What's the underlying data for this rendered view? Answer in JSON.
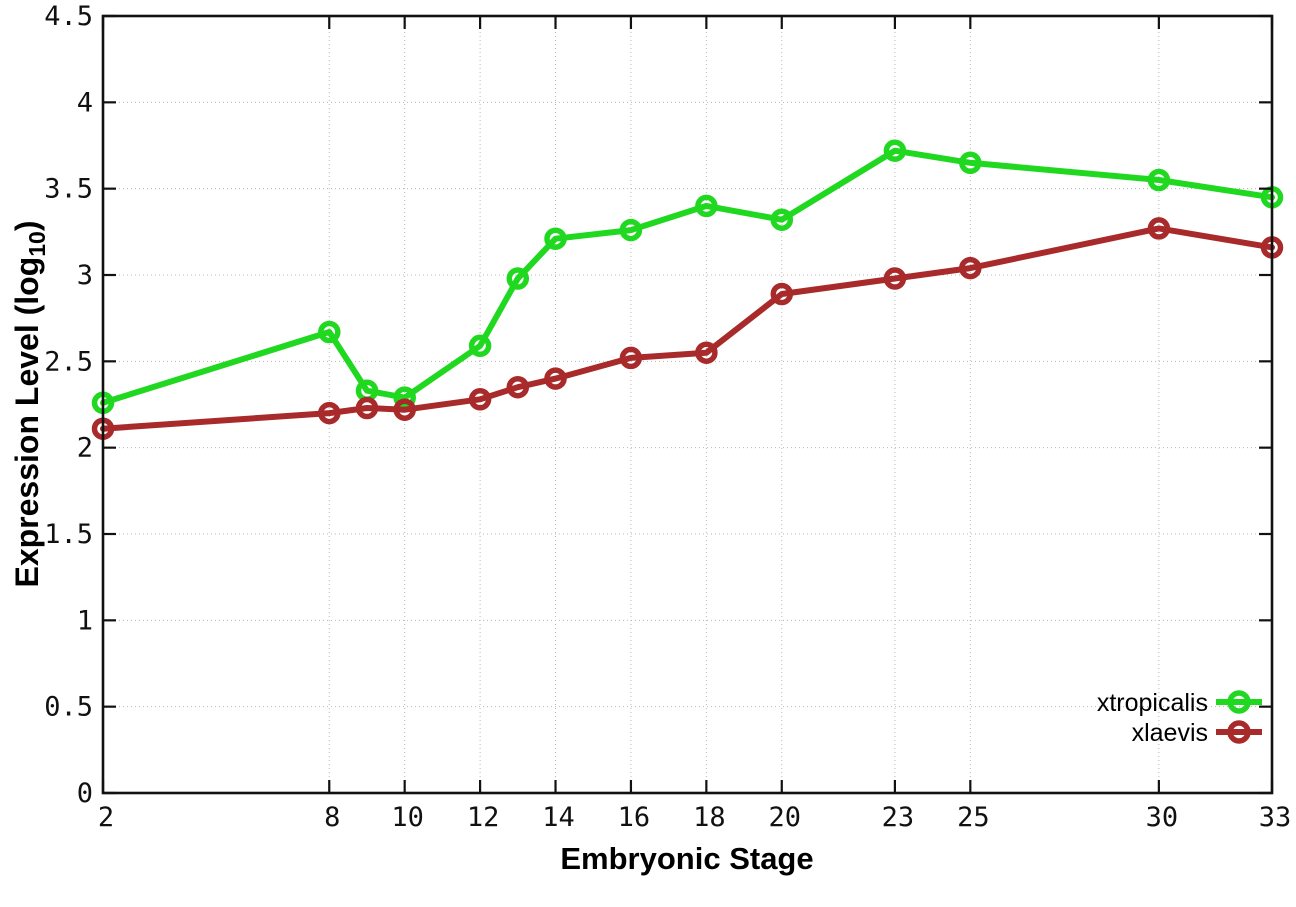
{
  "chart_data": {
    "type": "line",
    "title": "",
    "xlabel": "Embryonic Stage",
    "ylabel": "Expression Level (log10)",
    "ylabel_parts": {
      "main": "Expression Level (log",
      "sub": "10",
      "suffix": ")"
    },
    "xlim": [
      2,
      33
    ],
    "ylim": [
      0,
      4.5
    ],
    "grid": true,
    "legend_position": "bottom-right-inside",
    "x_tick_values": [
      2,
      8,
      10,
      12,
      14,
      16,
      18,
      20,
      23,
      25,
      30,
      33
    ],
    "x_tick_labels": [
      "2",
      "8",
      "10",
      "12",
      "14",
      "16",
      "18",
      "20",
      "23",
      "25",
      "30",
      "33"
    ],
    "y_tick_values": [
      0,
      0.5,
      1,
      1.5,
      2,
      2.5,
      3,
      3.5,
      4,
      4.5
    ],
    "y_tick_labels": [
      "0",
      "0.5",
      "1",
      "1.5",
      "2",
      "2.5",
      "3",
      "3.5",
      "4",
      "4.5"
    ],
    "x": [
      2,
      8,
      9,
      10,
      12,
      13,
      14,
      16,
      18,
      20,
      23,
      25,
      30,
      33
    ],
    "series": [
      {
        "name": "xtropicalis",
        "color": "#20d820",
        "values": [
          2.26,
          2.67,
          2.33,
          2.29,
          2.59,
          2.98,
          3.21,
          3.26,
          3.4,
          3.32,
          3.72,
          3.65,
          3.55,
          3.45
        ]
      },
      {
        "name": "xlaevis",
        "color": "#a82a2a",
        "values": [
          2.11,
          2.2,
          2.23,
          2.22,
          2.28,
          2.35,
          2.4,
          2.52,
          2.55,
          2.89,
          2.98,
          3.04,
          3.27,
          3.16
        ]
      }
    ]
  }
}
